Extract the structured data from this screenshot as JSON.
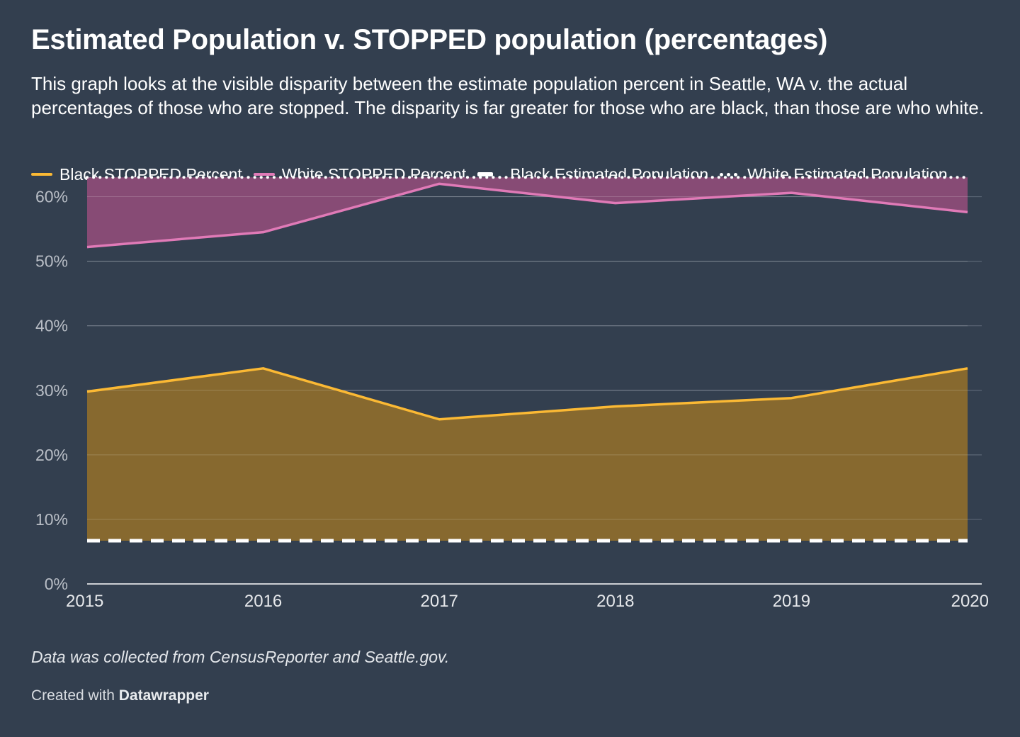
{
  "header": {
    "title": "Estimated Population v. STOPPED population (percentages)",
    "subtitle": "This graph looks at the visible disparity between the estimate population percent in Seattle, WA v. the actual percentages of those who are stopped. The disparity is far greater for those who are black, than those are who white."
  },
  "footer": {
    "notes": "Data was collected from CensusReporter and Seattle.gov.",
    "credit_prefix": "Created with",
    "credit_brand": "Datawrapper"
  },
  "colors": {
    "background": "#333f4f",
    "black_stopped": "#fbb934",
    "black_area": "#87692f",
    "white_stopped": "#e07ab7",
    "white_area": "#874b75",
    "estimate_lines": "#ffffff",
    "grid": "#5b6675",
    "tick_text": "#b9bec6"
  },
  "chart_data": {
    "type": "area",
    "title": "Estimated Population v. STOPPED population (percentages)",
    "x": [
      2015,
      2016,
      2017,
      2018,
      2019,
      2020
    ],
    "xlabel": "",
    "ylabel": "",
    "ylim": [
      0,
      65
    ],
    "yticks": [
      0,
      10,
      20,
      30,
      40,
      50,
      60
    ],
    "ytick_labels": [
      "0%",
      "10%",
      "20%",
      "30%",
      "40%",
      "50%",
      "60%"
    ],
    "xtick_labels": [
      "2015",
      "2016",
      "2017",
      "2018",
      "2019",
      "2020"
    ],
    "grid": true,
    "legend_position": "top-left",
    "series": [
      {
        "name": "Black STOPPED Percent",
        "style": "solid",
        "values": [
          29.8,
          33.4,
          25.5,
          27.5,
          28.8,
          33.4
        ]
      },
      {
        "name": "White STOPPED Percent",
        "style": "solid",
        "values": [
          52.2,
          54.5,
          62.0,
          59.0,
          60.6,
          57.6
        ]
      },
      {
        "name": "Black Estimated Population",
        "style": "dashed",
        "values": [
          6.7,
          6.7,
          6.7,
          6.7,
          6.7,
          6.7
        ]
      },
      {
        "name": "White Estimated Population",
        "style": "dotted",
        "values": [
          63.0,
          63.0,
          63.0,
          63.0,
          63.0,
          63.0
        ]
      }
    ]
  }
}
